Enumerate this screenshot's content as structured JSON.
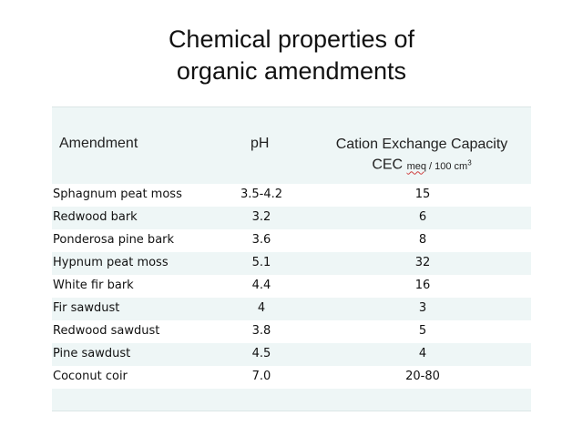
{
  "title": {
    "line1": "Chemical properties of",
    "line2": "organic amendments"
  },
  "table": {
    "headers": {
      "amendment": "Amendment",
      "ph": "pH",
      "cec_line1": "Cation Exchange Capacity",
      "cec_abbrev": "CEC",
      "cec_unit_meq": "meq",
      "cec_unit_rest": "/ 100 cm",
      "cec_unit_exp": "3"
    },
    "rows": [
      {
        "amendment": "Sphagnum peat moss",
        "ph": "3.5-4.2",
        "cec": "15"
      },
      {
        "amendment": "Redwood bark",
        "ph": "3.2",
        "cec": "6"
      },
      {
        "amendment": "Ponderosa pine bark",
        "ph": "3.6",
        "cec": "8"
      },
      {
        "amendment": "Hypnum peat moss",
        "ph": "5.1",
        "cec": "32"
      },
      {
        "amendment": "White fir bark",
        "ph": "4.4",
        "cec": "16"
      },
      {
        "amendment": "Fir sawdust",
        "ph": "4",
        "cec": "3"
      },
      {
        "amendment": "Redwood sawdust",
        "ph": "3.8",
        "cec": "5"
      },
      {
        "amendment": "Pine sawdust",
        "ph": "4.5",
        "cec": "4"
      },
      {
        "amendment": "Coconut coir",
        "ph": "7.0",
        "cec": "20-80"
      }
    ]
  }
}
